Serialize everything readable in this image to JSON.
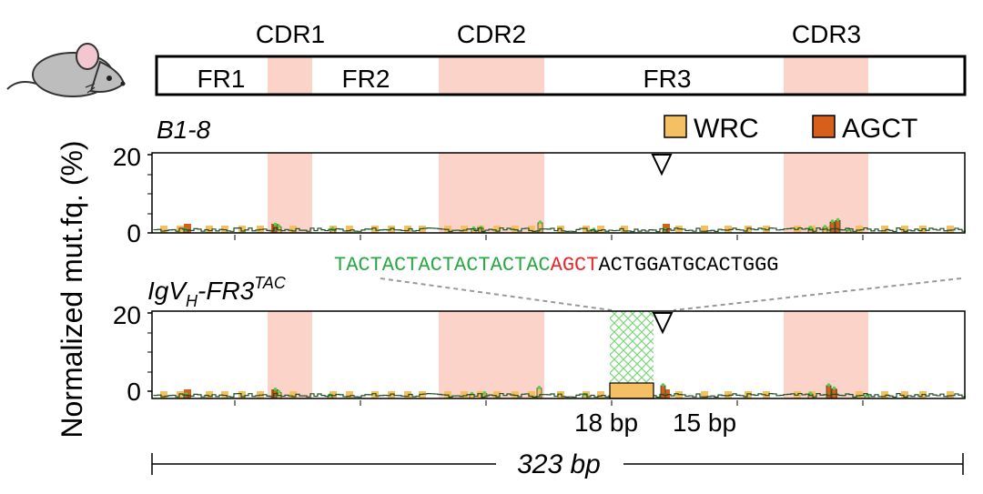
{
  "regions": [
    {
      "name": "FR1",
      "kind": "fr"
    },
    {
      "name": "CDR1",
      "kind": "cdr"
    },
    {
      "name": "FR2",
      "kind": "fr"
    },
    {
      "name": "CDR2",
      "kind": "cdr"
    },
    {
      "name": "FR3",
      "kind": "fr"
    },
    {
      "name": "CDR3",
      "kind": "cdr"
    }
  ],
  "legend": [
    {
      "label": "WRC",
      "color": "#f5c064"
    },
    {
      "label": "AGCT",
      "color": "#d65f1b"
    }
  ],
  "colors": {
    "cdr": "#fbd3c8",
    "wrc": "#f5c064",
    "agct": "#d65f1b",
    "insert": "#2aa845",
    "hotspot": "#e8282a"
  },
  "y_label": "Normalized mut.fq. (%)",
  "panels": [
    {
      "title": "B1-8",
      "y_ticks": [
        "0",
        "20"
      ]
    },
    {
      "title_main": "IgV",
      "title_sub": "H",
      "title_rest": "-FR3",
      "title_sup": "TAC",
      "y_ticks": [
        "0",
        "20"
      ]
    }
  ],
  "sequence": {
    "repeat": "TACTACTACTACTACTAC",
    "motif": "AGCT",
    "rest": "ACTGGATGCACTGGG"
  },
  "annotations": {
    "left_length": "18 bp",
    "right_length": "15 bp",
    "total_length": "323 bp"
  },
  "icons": [
    "mouse-icon",
    "triangle-marker-icon"
  ]
}
